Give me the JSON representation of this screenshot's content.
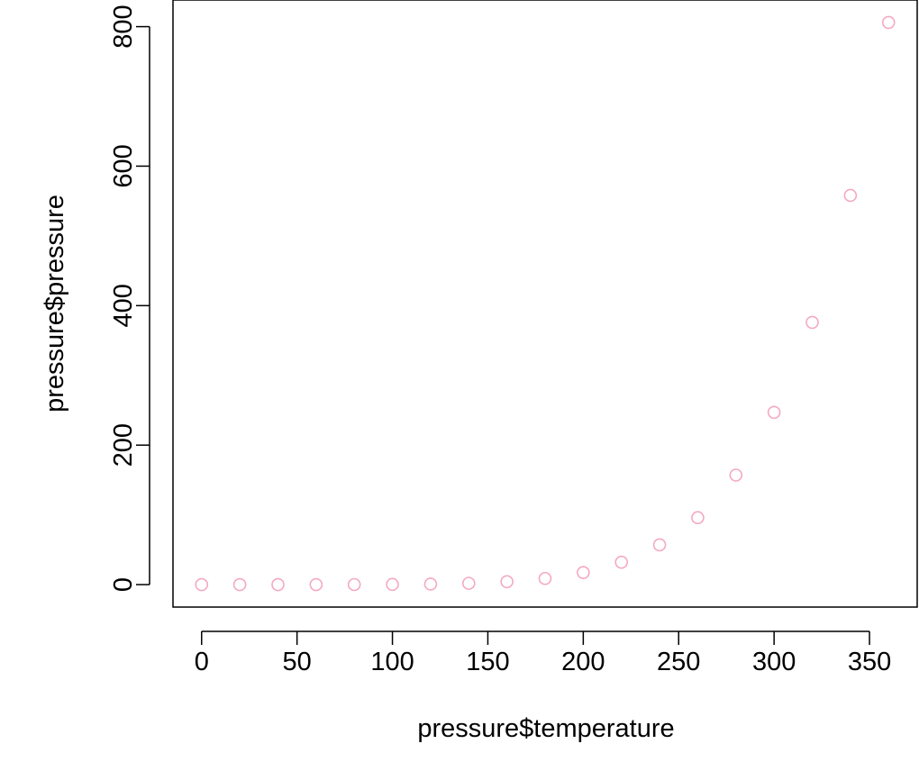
{
  "chart_data": {
    "type": "scatter",
    "title": "",
    "xlabel": "pressure$temperature",
    "ylabel": "pressure$pressure",
    "x": [
      0,
      20,
      40,
      60,
      80,
      100,
      120,
      140,
      160,
      180,
      200,
      220,
      240,
      260,
      280,
      300,
      320,
      340,
      360
    ],
    "y": [
      0.0002,
      0.0012,
      0.006,
      0.03,
      0.09,
      0.27,
      0.75,
      1.85,
      4.2,
      8.8,
      17.3,
      32.1,
      57,
      96,
      157,
      247,
      376,
      558,
      806
    ],
    "xlim": [
      -15,
      375
    ],
    "ylim": [
      -32.2,
      838.2
    ],
    "xticks": [
      "0",
      "50",
      "100",
      "150",
      "200",
      "250",
      "300",
      "350"
    ],
    "yticks": [
      "0",
      "200",
      "400",
      "600",
      "800"
    ],
    "grid": false,
    "marker": "open circle",
    "point_color": "#F4A9C0"
  }
}
